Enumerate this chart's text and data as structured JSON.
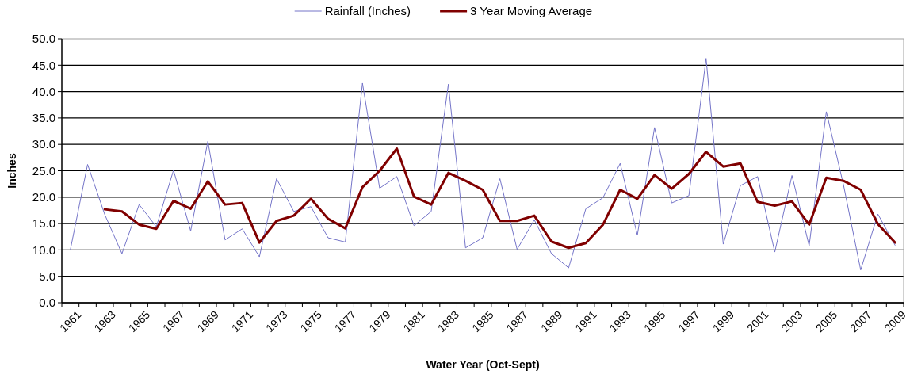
{
  "chart_data": {
    "type": "line",
    "xlabel": "Water Year (Oct-Sept)",
    "ylabel": "Inches",
    "categories": [
      "1961",
      null,
      "1963",
      null,
      "1965",
      null,
      "1967",
      null,
      "1969",
      null,
      "1971",
      null,
      "1973",
      null,
      "1975",
      null,
      "1977",
      null,
      "1979",
      null,
      "1981",
      null,
      "1983",
      null,
      "1985",
      null,
      "1987",
      null,
      "1989",
      null,
      "1991",
      null,
      "1993",
      null,
      "1995",
      null,
      "1997",
      null,
      "1999",
      null,
      "2001",
      null,
      "2003",
      null,
      "2005",
      null,
      "2007",
      null,
      "2009"
    ],
    "series": [
      {
        "name": "Rainfall (Inches)",
        "color": "#7474c8",
        "values": [
          10.1,
          26.2,
          16.7,
          9.3,
          18.6,
          14.4,
          25.1,
          13.6,
          30.6,
          11.9,
          14.0,
          8.7,
          23.5,
          17.3,
          18.2,
          12.3,
          11.5,
          41.6,
          21.7,
          23.9,
          14.6,
          17.3,
          41.4,
          10.4,
          12.3,
          23.5,
          10.1,
          15.7,
          9.3,
          6.6,
          17.8,
          19.9,
          26.4,
          12.8,
          33.2,
          18.9,
          20.3,
          46.3,
          11.1,
          22.2,
          23.9,
          9.6,
          24.1,
          10.8,
          36.2,
          22.3,
          6.2,
          16.8,
          10.9
        ]
      },
      {
        "name": "3 Year Moving Average",
        "color": "#800000",
        "values": [
          null,
          null,
          17.7,
          17.3,
          14.8,
          14.0,
          19.3,
          17.8,
          23.0,
          18.6,
          18.9,
          11.4,
          15.5,
          16.5,
          19.7,
          15.9,
          14.1,
          21.9,
          25.0,
          29.2,
          20.1,
          18.6,
          24.6,
          23.1,
          21.4,
          15.5,
          15.5,
          16.5,
          11.6,
          10.4,
          11.3,
          14.8,
          21.4,
          19.7,
          24.2,
          21.6,
          24.4,
          28.6,
          25.8,
          26.4,
          19.1,
          18.4,
          19.2,
          14.8,
          23.7,
          23.1,
          21.4,
          14.9,
          11.4
        ]
      }
    ],
    "ylim": [
      0,
      50
    ],
    "yticks": [
      {
        "value": 0,
        "label": "0.0"
      },
      {
        "value": 5,
        "label": "5.0"
      },
      {
        "value": 10,
        "label": "10.0"
      },
      {
        "value": 15,
        "label": "15.0"
      },
      {
        "value": 20,
        "label": "20.0"
      },
      {
        "value": 25,
        "label": "25.0"
      },
      {
        "value": 30,
        "label": "30.0"
      },
      {
        "value": 35,
        "label": "35.0"
      },
      {
        "value": 40,
        "label": "40.0"
      },
      {
        "value": 45,
        "label": "45.0"
      },
      {
        "value": 50,
        "label": "50.0"
      }
    ],
    "grid": "y",
    "legend": "top",
    "marker": "none",
    "line_style": "solid"
  }
}
